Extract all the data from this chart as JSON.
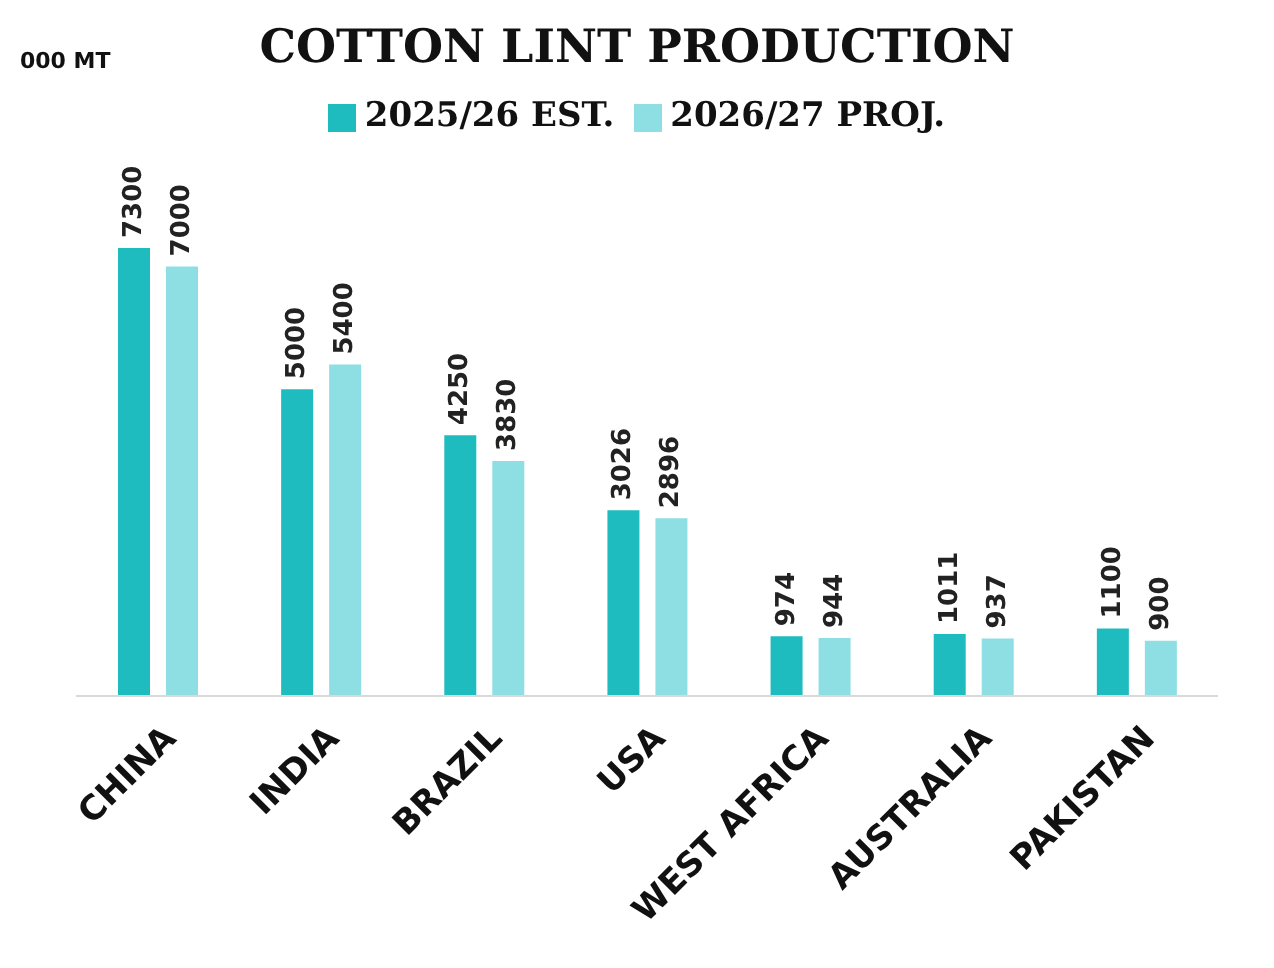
{
  "chart_data": {
    "type": "bar",
    "title": "COTTON LINT PRODUCTION",
    "annotations": [
      "000 MT"
    ],
    "categories": [
      "CHINA",
      "INDIA",
      "BRAZIL",
      "USA",
      "WEST AFRICA",
      "AUSTRALIA",
      "PAKISTAN"
    ],
    "series": [
      {
        "name": "2025/26 EST.",
        "color": "#1fbcbf",
        "values": [
          7300,
          5000,
          4250,
          3026,
          974,
          1011,
          1100
        ]
      },
      {
        "name": "2026/27 PROJ.",
        "color": "#8edfe3",
        "values": [
          7000,
          5400,
          3830,
          2896,
          944,
          937,
          900
        ]
      }
    ],
    "data_labels": true,
    "legend": "top",
    "grid": false
  }
}
